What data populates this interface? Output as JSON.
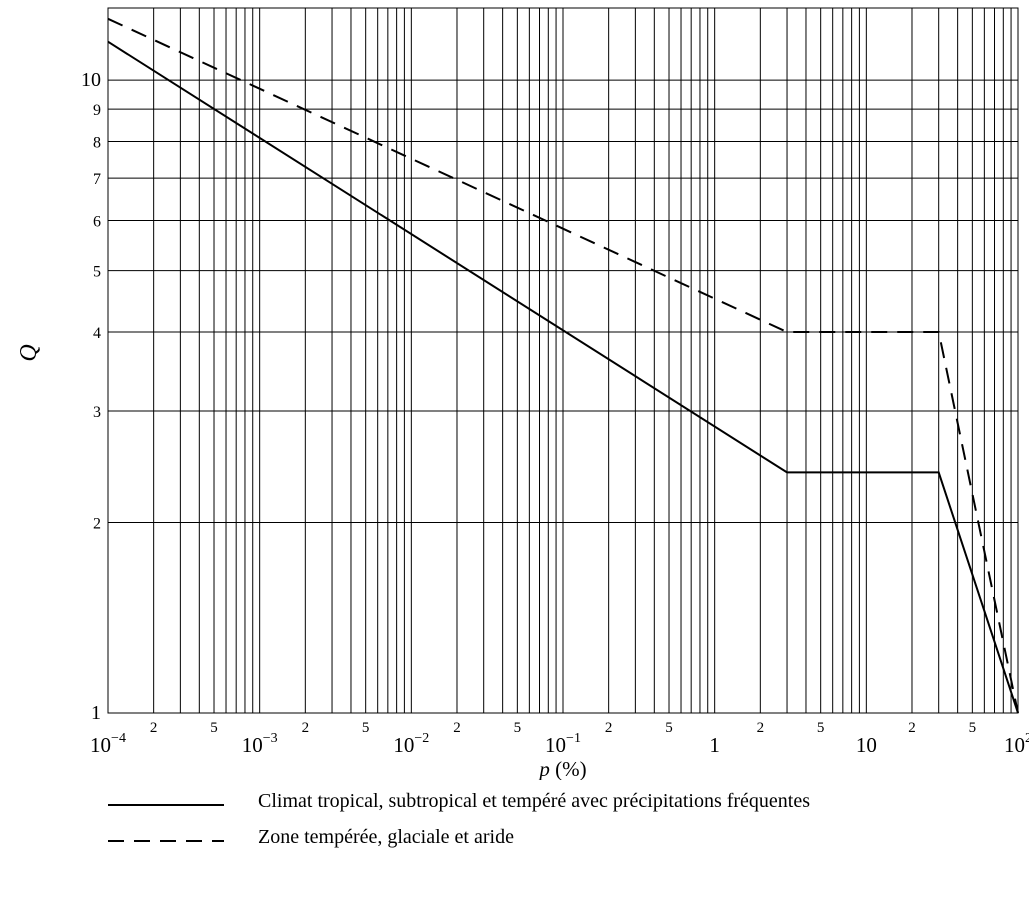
{
  "chart_data": {
    "type": "line",
    "title": "",
    "xlabel": "p (%)",
    "ylabel": "Q",
    "xscale": "log",
    "yscale": "log",
    "xlim": [
      0.0001,
      100
    ],
    "ylim": [
      1,
      13
    ],
    "grid": true,
    "legend_position": "bottom",
    "x_ticks": [
      {
        "base": "10",
        "exp": "−4"
      },
      {
        "base": "10",
        "exp": "−3"
      },
      {
        "base": "10",
        "exp": "−2"
      },
      {
        "base": "10",
        "exp": "−1"
      },
      {
        "base": "1",
        "exp": ""
      },
      {
        "base": "10",
        "exp": ""
      },
      {
        "base": "10",
        "exp": "2"
      }
    ],
    "x_minor_labels": [
      "2",
      "5"
    ],
    "y_ticks": [
      "1",
      "2",
      "3",
      "4",
      "5",
      "6",
      "7",
      "8",
      "9",
      "10"
    ],
    "series": [
      {
        "name": "Climat tropical, subtropical et tempéré avec précipitations fréquentes",
        "style": "solid",
        "color": "#000000",
        "x": [
          0.0001,
          3,
          30,
          100
        ],
        "y": [
          11.5,
          2.4,
          2.4,
          1
        ]
      },
      {
        "name": "Zone tempérée, glaciale et aride",
        "style": "dashed",
        "color": "#000000",
        "x": [
          0.0001,
          3,
          30,
          100
        ],
        "y": [
          12.5,
          4,
          4,
          1
        ]
      }
    ]
  }
}
